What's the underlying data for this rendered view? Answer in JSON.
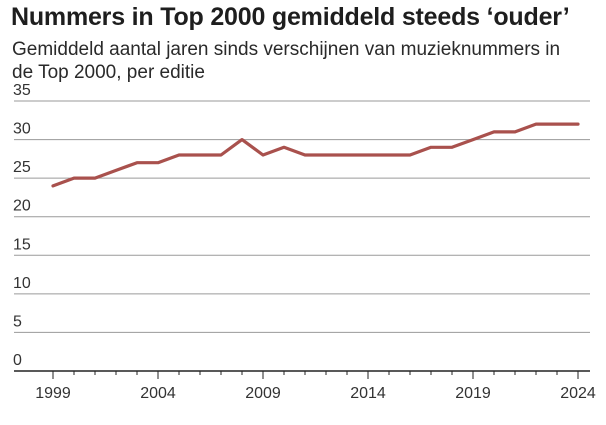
{
  "chart_data": {
    "type": "line",
    "title": "Nummers in Top 2000 gemiddeld steeds ‘ouder’",
    "subtitle": "Gemiddeld aantal jaren sinds verschijnen van muzieknummers in de Top 2000, per editie",
    "xlabel": "",
    "ylabel": "",
    "x": [
      1999,
      2000,
      2001,
      2002,
      2003,
      2004,
      2005,
      2006,
      2007,
      2008,
      2009,
      2010,
      2011,
      2012,
      2013,
      2014,
      2015,
      2016,
      2017,
      2018,
      2019,
      2020,
      2021,
      2022,
      2023,
      2024
    ],
    "series": [
      {
        "values": [
          24,
          25,
          25,
          26,
          27,
          27,
          28,
          28,
          28,
          30,
          28,
          29,
          28,
          28,
          28,
          28,
          28,
          28,
          29,
          29,
          30,
          31,
          31,
          32,
          32,
          32
        ]
      }
    ],
    "xlim": [
      1999,
      2024
    ],
    "ylim": [
      0,
      35
    ],
    "x_ticks": [
      1999,
      2004,
      2009,
      2014,
      2019,
      2024
    ],
    "y_ticks": [
      0,
      5,
      10,
      15,
      20,
      25,
      30,
      35
    ],
    "grid": "horizontal",
    "line_color": "#a9514d"
  }
}
